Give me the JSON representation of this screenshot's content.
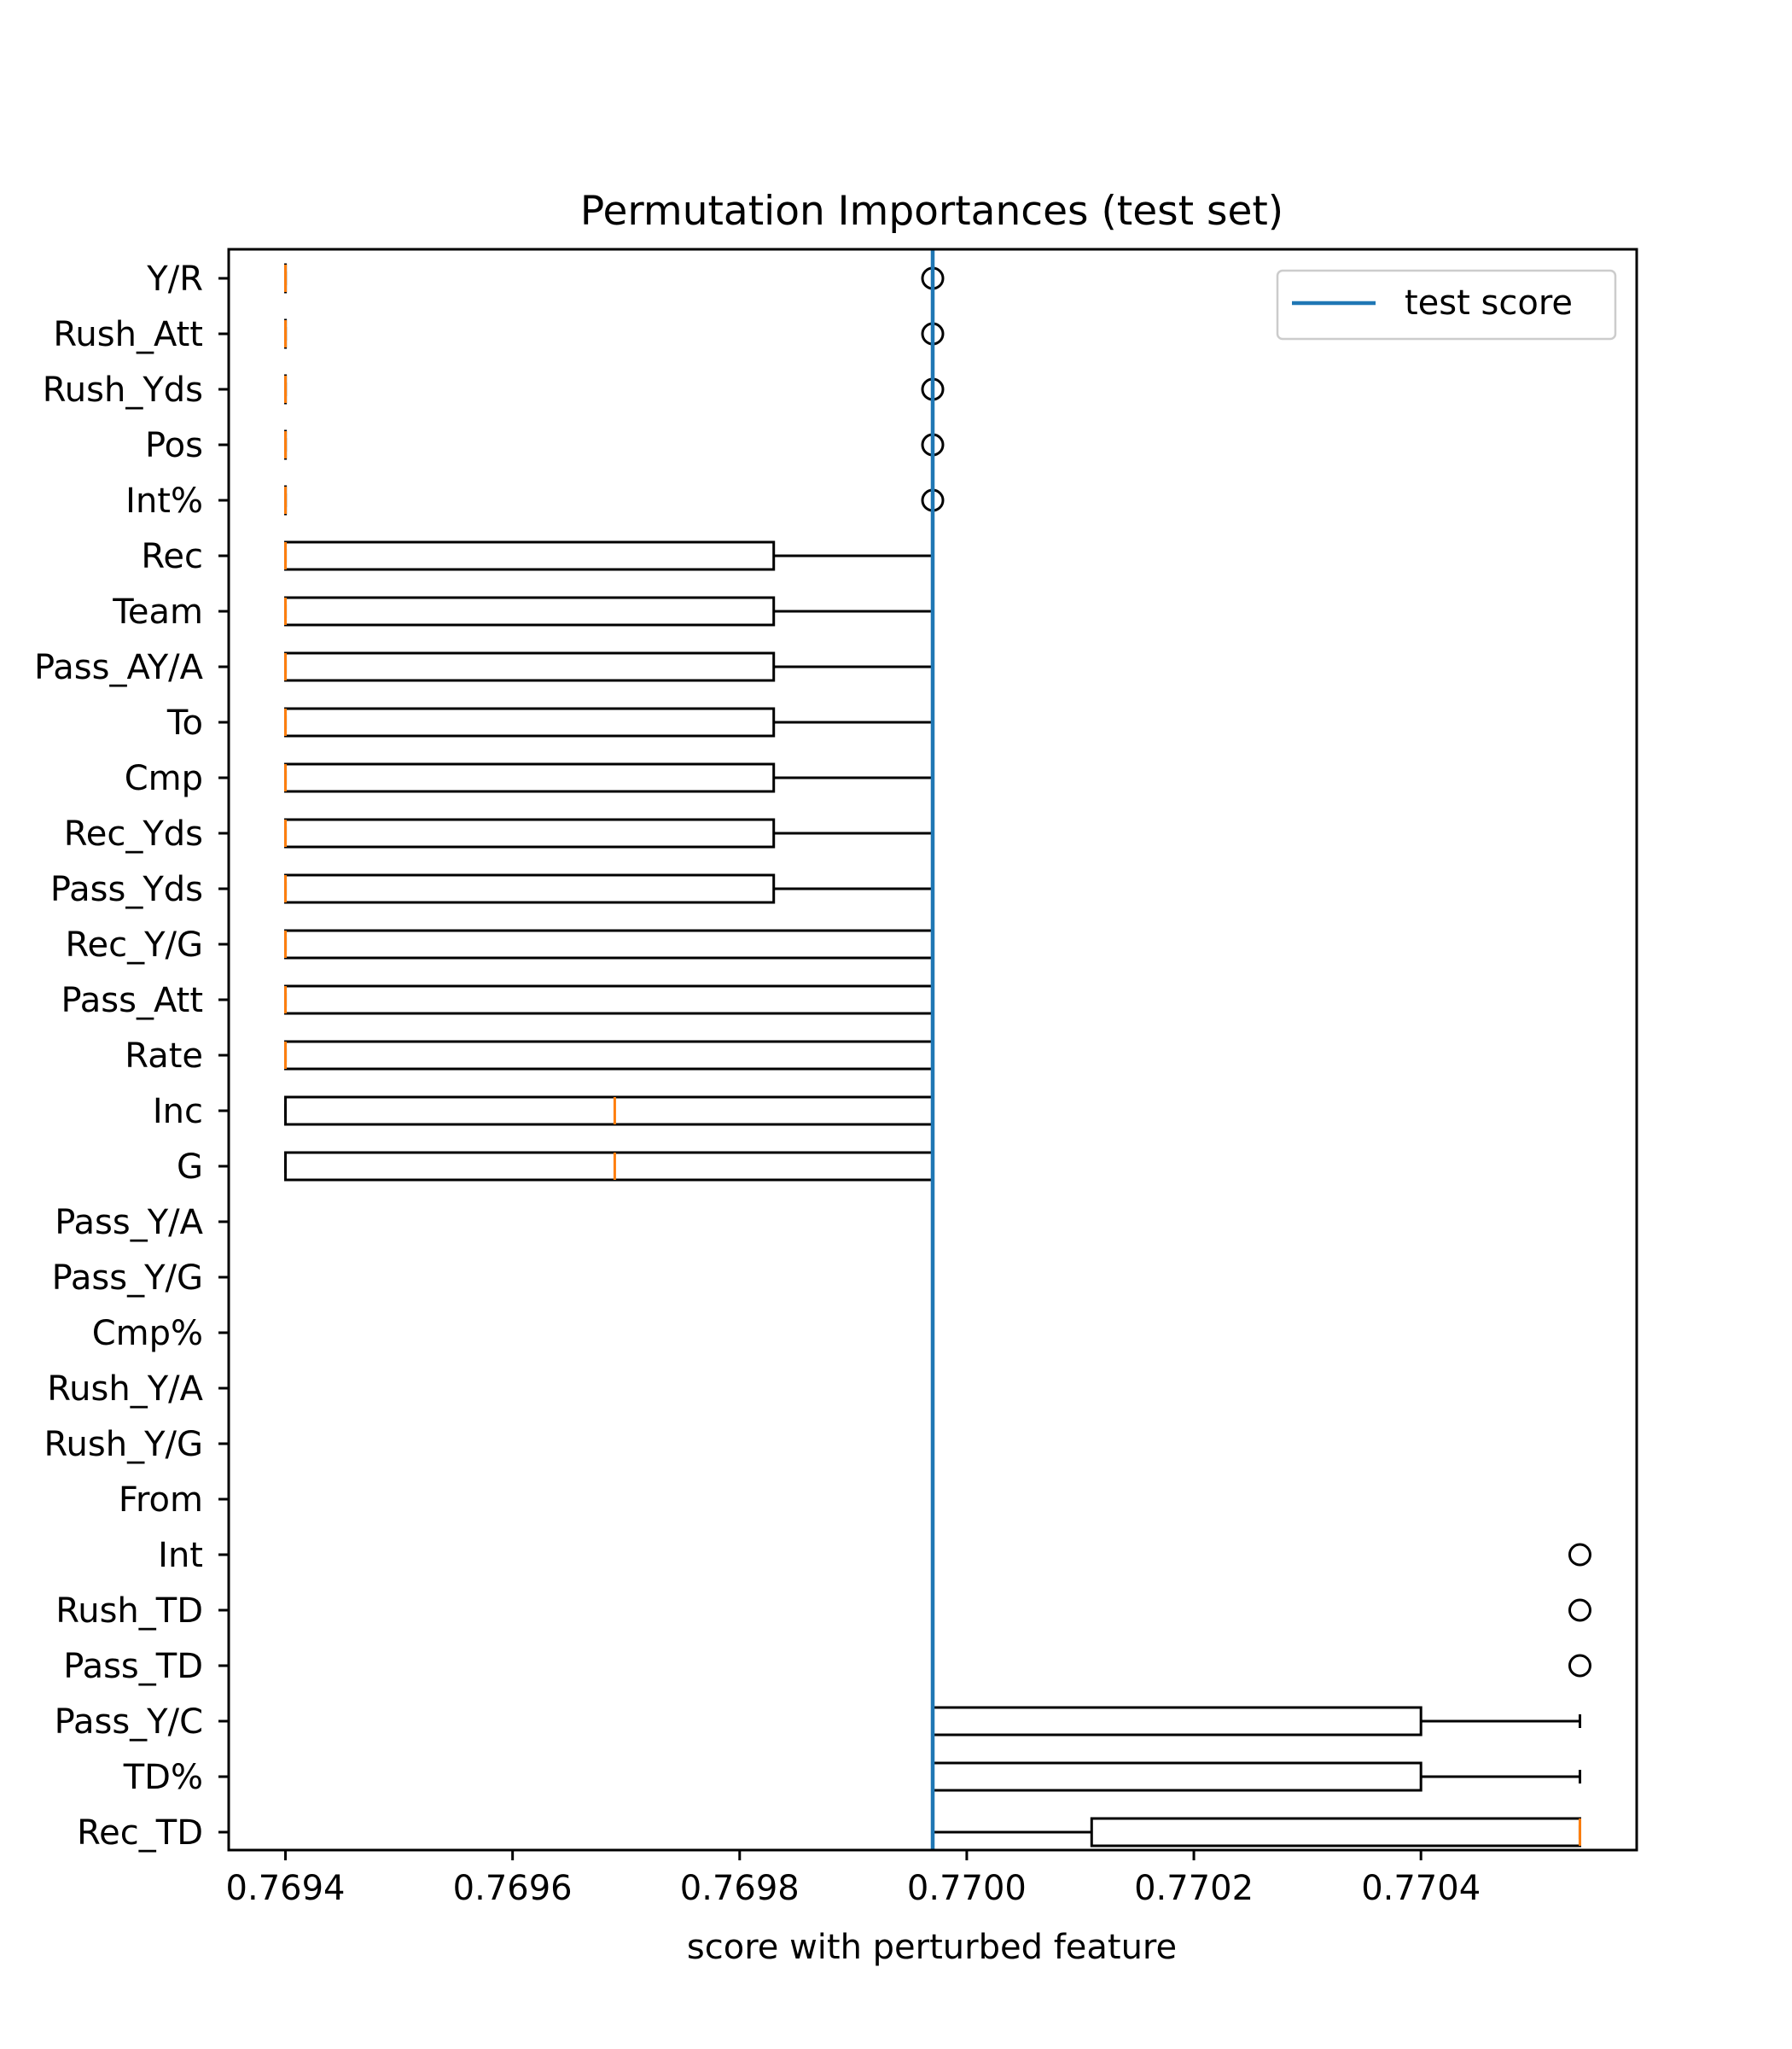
{
  "chart_data": {
    "type": "boxplot",
    "orientation": "horizontal",
    "title": "Permutation Importances (test set)",
    "xlabel": "score with perturbed feature",
    "ylabel": "",
    "xlim": [
      0.76935,
      0.77059
    ],
    "xticks": [
      0.7694,
      0.7696,
      0.7698,
      0.77,
      0.7702,
      0.7704
    ],
    "xtick_labels": [
      "0.7694",
      "0.7696",
      "0.7698",
      "0.7700",
      "0.7702",
      "0.7704"
    ],
    "reference_line": {
      "name": "test score",
      "value": 0.76997,
      "color": "#1f77b4"
    },
    "legend": {
      "entries": [
        "test score"
      ],
      "placement": "top-right"
    },
    "grid": false,
    "colors": {
      "box": "#000000",
      "median": "#ff7f0e",
      "reference": "#1f77b4"
    },
    "features": [
      {
        "name": "Y/R",
        "whislo": 0.7694,
        "q1": 0.7694,
        "med": 0.7694,
        "q3": 0.7694,
        "whishi": 0.7694,
        "fliers": [
          0.76997
        ]
      },
      {
        "name": "Rush_Att",
        "whislo": 0.7694,
        "q1": 0.7694,
        "med": 0.7694,
        "q3": 0.7694,
        "whishi": 0.7694,
        "fliers": [
          0.76997
        ]
      },
      {
        "name": "Rush_Yds",
        "whislo": 0.7694,
        "q1": 0.7694,
        "med": 0.7694,
        "q3": 0.7694,
        "whishi": 0.7694,
        "fliers": [
          0.76997
        ]
      },
      {
        "name": "Pos",
        "whislo": 0.7694,
        "q1": 0.7694,
        "med": 0.7694,
        "q3": 0.7694,
        "whishi": 0.7694,
        "fliers": [
          0.76997
        ]
      },
      {
        "name": "Int%",
        "whislo": 0.7694,
        "q1": 0.7694,
        "med": 0.7694,
        "q3": 0.7694,
        "whishi": 0.7694,
        "fliers": [
          0.76997
        ]
      },
      {
        "name": "Rec",
        "whislo": 0.7694,
        "q1": 0.7694,
        "med": 0.7694,
        "q3": 0.76983,
        "whishi": 0.76997,
        "fliers": []
      },
      {
        "name": "Team",
        "whislo": 0.7694,
        "q1": 0.7694,
        "med": 0.7694,
        "q3": 0.76983,
        "whishi": 0.76997,
        "fliers": []
      },
      {
        "name": "Pass_AY/A",
        "whislo": 0.7694,
        "q1": 0.7694,
        "med": 0.7694,
        "q3": 0.76983,
        "whishi": 0.76997,
        "fliers": []
      },
      {
        "name": "To",
        "whislo": 0.7694,
        "q1": 0.7694,
        "med": 0.7694,
        "q3": 0.76983,
        "whishi": 0.76997,
        "fliers": []
      },
      {
        "name": "Cmp",
        "whislo": 0.7694,
        "q1": 0.7694,
        "med": 0.7694,
        "q3": 0.76983,
        "whishi": 0.76997,
        "fliers": []
      },
      {
        "name": "Rec_Yds",
        "whislo": 0.7694,
        "q1": 0.7694,
        "med": 0.7694,
        "q3": 0.76983,
        "whishi": 0.76997,
        "fliers": []
      },
      {
        "name": "Pass_Yds",
        "whislo": 0.7694,
        "q1": 0.7694,
        "med": 0.7694,
        "q3": 0.76983,
        "whishi": 0.76997,
        "fliers": []
      },
      {
        "name": "Rec_Y/G",
        "whislo": 0.7694,
        "q1": 0.7694,
        "med": 0.7694,
        "q3": 0.76997,
        "whishi": 0.76997,
        "fliers": []
      },
      {
        "name": "Pass_Att",
        "whislo": 0.7694,
        "q1": 0.7694,
        "med": 0.7694,
        "q3": 0.76997,
        "whishi": 0.76997,
        "fliers": []
      },
      {
        "name": "Rate",
        "whislo": 0.7694,
        "q1": 0.7694,
        "med": 0.7694,
        "q3": 0.76997,
        "whishi": 0.76997,
        "fliers": []
      },
      {
        "name": "Inc",
        "whislo": 0.7694,
        "q1": 0.7694,
        "med": 0.76969,
        "q3": 0.76997,
        "whishi": 0.76997,
        "fliers": []
      },
      {
        "name": "G",
        "whislo": 0.7694,
        "q1": 0.7694,
        "med": 0.76969,
        "q3": 0.76997,
        "whishi": 0.76997,
        "fliers": []
      },
      {
        "name": "Pass_Y/A",
        "whislo": 0.76997,
        "q1": 0.76997,
        "med": 0.76997,
        "q3": 0.76997,
        "whishi": 0.76997,
        "fliers": []
      },
      {
        "name": "Pass_Y/G",
        "whislo": 0.76997,
        "q1": 0.76997,
        "med": 0.76997,
        "q3": 0.76997,
        "whishi": 0.76997,
        "fliers": []
      },
      {
        "name": "Cmp%",
        "whislo": 0.76997,
        "q1": 0.76997,
        "med": 0.76997,
        "q3": 0.76997,
        "whishi": 0.76997,
        "fliers": []
      },
      {
        "name": "Rush_Y/A",
        "whislo": 0.76997,
        "q1": 0.76997,
        "med": 0.76997,
        "q3": 0.76997,
        "whishi": 0.76997,
        "fliers": []
      },
      {
        "name": "Rush_Y/G",
        "whislo": 0.76997,
        "q1": 0.76997,
        "med": 0.76997,
        "q3": 0.76997,
        "whishi": 0.76997,
        "fliers": []
      },
      {
        "name": "From",
        "whislo": 0.76997,
        "q1": 0.76997,
        "med": 0.76997,
        "q3": 0.76997,
        "whishi": 0.76997,
        "fliers": []
      },
      {
        "name": "Int",
        "whislo": 0.76997,
        "q1": 0.76997,
        "med": 0.76997,
        "q3": 0.76997,
        "whishi": 0.76997,
        "fliers": [
          0.77054
        ]
      },
      {
        "name": "Rush_TD",
        "whislo": 0.76997,
        "q1": 0.76997,
        "med": 0.76997,
        "q3": 0.76997,
        "whishi": 0.76997,
        "fliers": [
          0.77054
        ]
      },
      {
        "name": "Pass_TD",
        "whislo": 0.76997,
        "q1": 0.76997,
        "med": 0.76997,
        "q3": 0.76997,
        "whishi": 0.76997,
        "fliers": [
          0.77054
        ]
      },
      {
        "name": "Pass_Y/C",
        "whislo": 0.76997,
        "q1": 0.76997,
        "med": 0.76997,
        "q3": 0.7704,
        "whishi": 0.77054,
        "fliers": []
      },
      {
        "name": "TD%",
        "whislo": 0.76997,
        "q1": 0.76997,
        "med": 0.76997,
        "q3": 0.7704,
        "whishi": 0.77054,
        "fliers": []
      },
      {
        "name": "Rec_TD",
        "whislo": 0.76997,
        "q1": 0.77011,
        "med": 0.77054,
        "q3": 0.77054,
        "whishi": 0.77054,
        "fliers": []
      }
    ]
  }
}
